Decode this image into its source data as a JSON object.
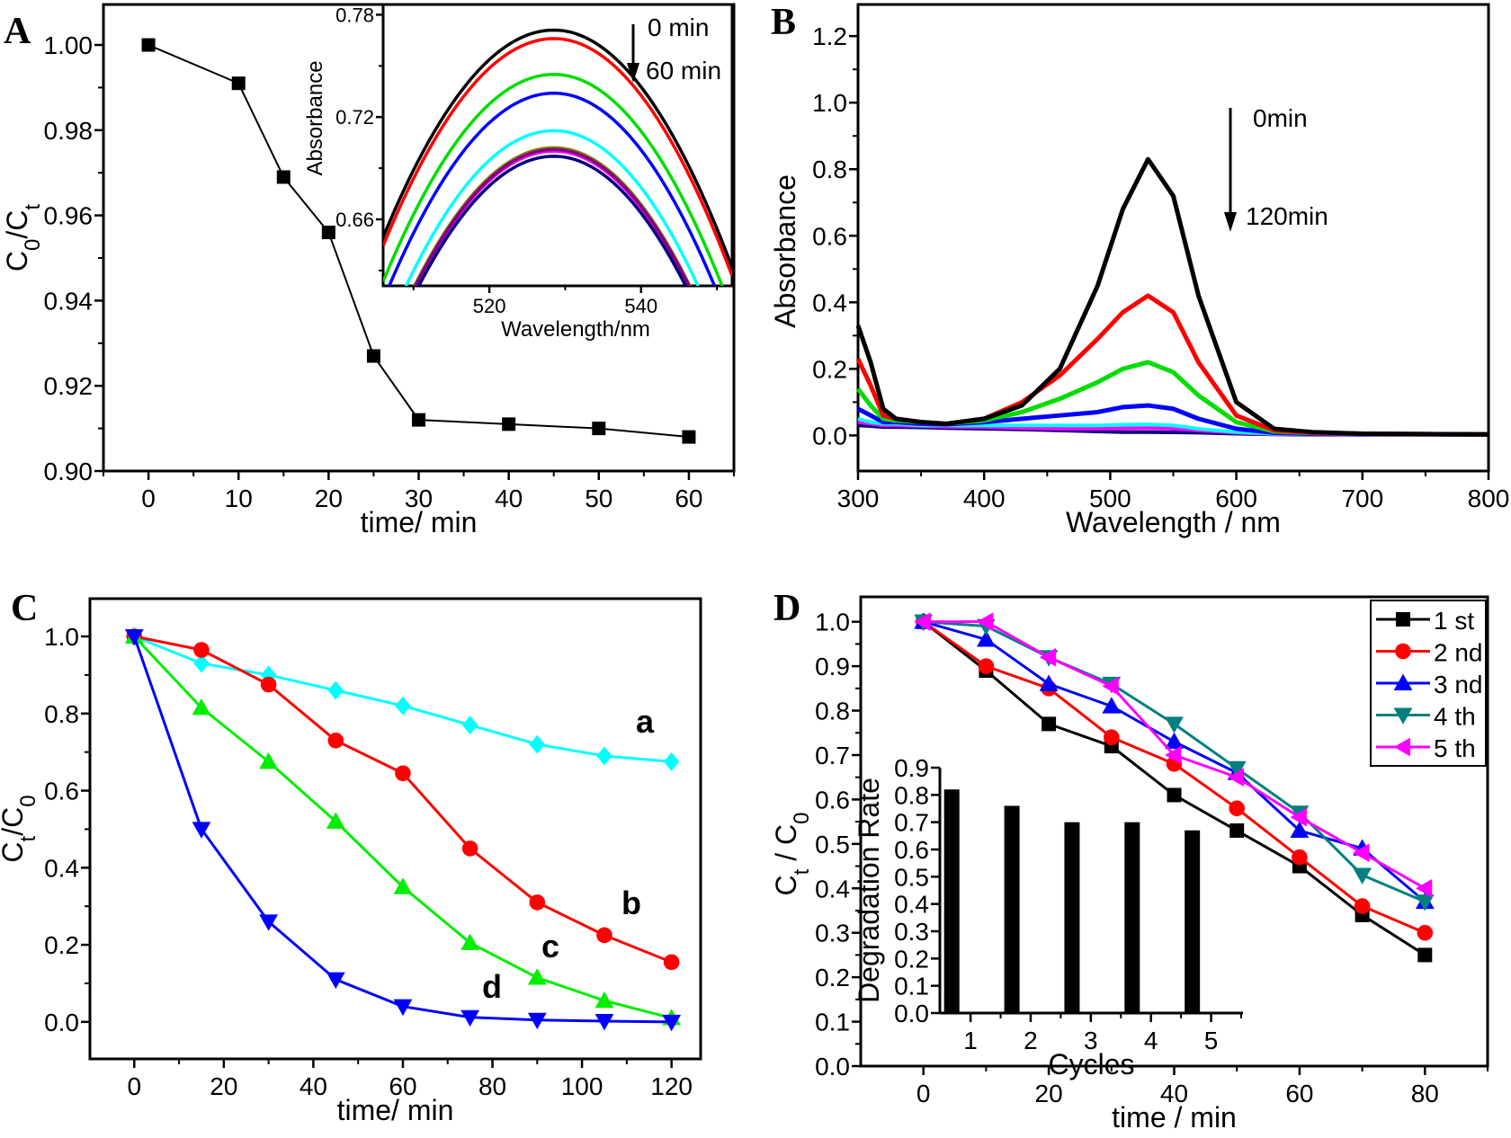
{
  "figure": {
    "panel_labels": [
      "A",
      "B",
      "C",
      "D"
    ]
  },
  "chart_data": [
    {
      "panel": "A",
      "type": "line",
      "xlabel": [
        {
          "t": "time/ min"
        }
      ],
      "ylabel": [
        {
          "t": "C"
        },
        {
          "t": "0",
          "sub": true
        },
        {
          "t": "/C"
        },
        {
          "t": "t",
          "sub": true
        }
      ],
      "xlim": [
        -5,
        65
      ],
      "ylim": [
        0.9,
        1.0095
      ],
      "xticks": [
        0,
        10,
        20,
        30,
        40,
        50,
        60
      ],
      "xticklabels": [
        "0",
        "10",
        "20",
        "30",
        "40",
        "50",
        "60"
      ],
      "xminor": [
        -5,
        5,
        15,
        25,
        35,
        45,
        55,
        65
      ],
      "yticks": [
        0.9,
        0.92,
        0.94,
        0.96,
        0.98,
        1.0
      ],
      "yticklabels": [
        "0.90",
        "0.92",
        "0.94",
        "0.96",
        "0.98",
        "1.00"
      ],
      "yminor": [
        0.91,
        0.93,
        0.95,
        0.97,
        0.99
      ],
      "series": [
        {
          "name": "C0/Ct",
          "color": "#000000",
          "marker": "square",
          "x": [
            0,
            10,
            15,
            20,
            25,
            30,
            40,
            50,
            60
          ],
          "y": [
            1.0,
            0.991,
            0.969,
            0.956,
            0.927,
            0.912,
            0.911,
            0.91,
            0.908
          ]
        }
      ],
      "inset": {
        "type": "line",
        "xlabel": [
          {
            "t": "Wavelength/nm"
          }
        ],
        "ylabel": [
          {
            "t": "Absorbance"
          }
        ],
        "xlim": [
          506,
          552
        ],
        "ylim": [
          0.621,
          0.786
        ],
        "xticks": [
          520,
          540
        ],
        "xticklabels": [
          "520",
          "540"
        ],
        "xminor": [
          510,
          530,
          550
        ],
        "yticks": [
          0.66,
          0.72,
          0.78
        ],
        "yticklabels": [
          "0.66",
          "0.72",
          "0.78"
        ],
        "yminor": [
          0.63,
          0.69,
          0.75
        ],
        "peak_wavelength": 528.5,
        "curvature": 0.00024,
        "annotations": {
          "start": "0 min",
          "end": "60 min"
        },
        "series": [
          {
            "color": "#000000",
            "peak": 0.771
          },
          {
            "color": "#ff0000",
            "peak": 0.766
          },
          {
            "color": "#00dd00",
            "peak": 0.745
          },
          {
            "color": "#0000ff",
            "peak": 0.734
          },
          {
            "color": "#00ffff",
            "peak": 0.712
          },
          {
            "color": "#808000",
            "peak": 0.702
          },
          {
            "color": "#e0e000",
            "peak": 0.701
          },
          {
            "color": "#ff00ff",
            "peak": 0.7
          },
          {
            "color": "#800080",
            "peak": 0.701
          },
          {
            "color": "#000080",
            "peak": 0.697
          }
        ]
      }
    },
    {
      "panel": "B",
      "type": "line",
      "xlabel": [
        {
          "t": "Wavelength / nm"
        }
      ],
      "ylabel": [
        {
          "t": "Absorbance"
        }
      ],
      "xlim": [
        300,
        800
      ],
      "ylim": [
        -0.107,
        1.295
      ],
      "xticks": [
        300,
        400,
        500,
        600,
        700,
        800
      ],
      "xticklabels": [
        "300",
        "400",
        "500",
        "600",
        "700",
        "800"
      ],
      "xminor": [
        350,
        450,
        550,
        650,
        750
      ],
      "yticks": [
        0,
        0.2,
        0.4,
        0.6,
        0.8,
        1.0,
        1.2
      ],
      "yticklabels": [
        "0.0",
        "0.2",
        "0.4",
        "0.6",
        "0.8",
        "1.0",
        "1.2"
      ],
      "yminor": [
        0.1,
        0.3,
        0.5,
        0.7,
        0.9,
        1.1
      ],
      "annotations": {
        "start": "0min",
        "end": "120min"
      },
      "x": [
        300,
        310,
        320,
        330,
        350,
        370,
        400,
        430,
        460,
        490,
        510,
        530,
        550,
        570,
        600,
        630,
        660,
        700,
        800
      ],
      "series": [
        {
          "color": "#000000",
          "width": 5,
          "y": [
            0.33,
            0.22,
            0.08,
            0.05,
            0.04,
            0.035,
            0.05,
            0.09,
            0.2,
            0.45,
            0.68,
            0.83,
            0.72,
            0.42,
            0.1,
            0.02,
            0.01,
            0.005,
            0.003
          ]
        },
        {
          "color": "#ff0000",
          "width": 5,
          "y": [
            0.23,
            0.15,
            0.06,
            0.05,
            0.04,
            0.035,
            0.05,
            0.1,
            0.18,
            0.29,
            0.37,
            0.42,
            0.37,
            0.22,
            0.06,
            0.015,
            0.008,
            0.005,
            0.003
          ]
        },
        {
          "color": "#00dd00",
          "width": 5,
          "y": [
            0.14,
            0.09,
            0.05,
            0.045,
            0.04,
            0.035,
            0.045,
            0.07,
            0.11,
            0.16,
            0.2,
            0.22,
            0.19,
            0.12,
            0.04,
            0.012,
            0.007,
            0.005,
            0.003
          ]
        },
        {
          "color": "#0000ff",
          "width": 5,
          "y": [
            0.08,
            0.06,
            0.04,
            0.04,
            0.035,
            0.033,
            0.04,
            0.05,
            0.06,
            0.07,
            0.085,
            0.09,
            0.08,
            0.05,
            0.02,
            0.008,
            0.005,
            0.004,
            0.003
          ]
        },
        {
          "color": "#00ffff",
          "width": 4,
          "y": [
            0.05,
            0.04,
            0.035,
            0.035,
            0.03,
            0.03,
            0.03,
            0.03,
            0.03,
            0.03,
            0.032,
            0.033,
            0.03,
            0.02,
            0.01,
            0.005,
            0.004,
            0.003,
            0.002
          ]
        },
        {
          "color": "#ff00ff",
          "width": 4,
          "y": [
            0.04,
            0.035,
            0.03,
            0.03,
            0.028,
            0.026,
            0.025,
            0.022,
            0.02,
            0.02,
            0.021,
            0.022,
            0.02,
            0.015,
            0.008,
            0.004,
            0.003,
            0.002,
            0.002
          ]
        },
        {
          "color": "#000080",
          "width": 4,
          "y": [
            0.03,
            0.028,
            0.025,
            0.025,
            0.024,
            0.022,
            0.02,
            0.018,
            0.015,
            0.012,
            0.01,
            0.01,
            0.009,
            0.008,
            0.005,
            0.003,
            0.002,
            0.002,
            0.002
          ]
        }
      ]
    },
    {
      "panel": "C",
      "type": "line",
      "xlabel": [
        {
          "t": "time/ min"
        }
      ],
      "ylabel": [
        {
          "t": "C"
        },
        {
          "t": "t",
          "sub": true
        },
        {
          "t": "/C"
        },
        {
          "t": "0",
          "sub": true
        }
      ],
      "xlim": [
        -9.9,
        126.5
      ],
      "ylim": [
        -0.096,
        1.098
      ],
      "xticks": [
        0,
        20,
        40,
        60,
        80,
        100,
        120
      ],
      "xticklabels": [
        "0",
        "20",
        "40",
        "60",
        "80",
        "100",
        "120"
      ],
      "xminor": [
        10,
        30,
        50,
        70,
        90,
        110
      ],
      "yticks": [
        0,
        0.2,
        0.4,
        0.6,
        0.8,
        1.0
      ],
      "yticklabels": [
        "0.0",
        "0.2",
        "0.4",
        "0.6",
        "0.8",
        "1.0"
      ],
      "yminor": [
        0.1,
        0.3,
        0.5,
        0.7,
        0.9
      ],
      "x": [
        0,
        15,
        30,
        45,
        60,
        75,
        90,
        105,
        120
      ],
      "series": [
        {
          "name": "a",
          "color": "#00ffff",
          "marker": "diamond",
          "y": [
            1.0,
            0.93,
            0.9,
            0.86,
            0.82,
            0.77,
            0.72,
            0.69,
            0.675
          ]
        },
        {
          "name": "b",
          "color": "#ff0000",
          "marker": "circle",
          "y": [
            1.0,
            0.965,
            0.875,
            0.73,
            0.645,
            0.45,
            0.31,
            0.225,
            0.155
          ]
        },
        {
          "name": "c",
          "color": "#00ee00",
          "marker": "tri-up",
          "y": [
            1.0,
            0.815,
            0.675,
            0.52,
            0.35,
            0.205,
            0.115,
            0.055,
            0.01
          ]
        },
        {
          "name": "d",
          "color": "#0000ff",
          "marker": "tri-down",
          "y": [
            1.0,
            0.5,
            0.26,
            0.11,
            0.04,
            0.012,
            0.005,
            0.002,
            0.0
          ]
        }
      ]
    },
    {
      "panel": "D",
      "type": "line",
      "xlabel": [
        {
          "t": "time / min"
        }
      ],
      "ylabel": [
        {
          "t": "C"
        },
        {
          "t": "t",
          "sub": true
        },
        {
          "t": " / C"
        },
        {
          "t": "0",
          "sub": true
        }
      ],
      "xlim": [
        -10,
        90
      ],
      "ylim": [
        0,
        1.056
      ],
      "xticks": [
        0,
        20,
        40,
        60,
        80
      ],
      "xticklabels": [
        "0",
        "20",
        "40",
        "60",
        "80"
      ],
      "xminor": [
        10,
        30,
        50,
        70,
        90
      ],
      "yticks": [
        0,
        0.1,
        0.2,
        0.3,
        0.4,
        0.5,
        0.6,
        0.7,
        0.8,
        0.9,
        1.0
      ],
      "yticklabels": [
        "0.0",
        "0.1",
        "0.2",
        "0.3",
        "0.4",
        "0.5",
        "0.6",
        "0.7",
        "0.8",
        "0.9",
        "1.0"
      ],
      "yminor": [
        0.05,
        0.15,
        0.25,
        0.35,
        0.45,
        0.55,
        0.65,
        0.75,
        0.85,
        0.95
      ],
      "legend": "top-right",
      "x": [
        0,
        10,
        20,
        30,
        40,
        50,
        60,
        70,
        80
      ],
      "series": [
        {
          "name": "1 st",
          "color": "#000000",
          "marker": "square",
          "y": [
            1.0,
            0.89,
            0.77,
            0.72,
            0.61,
            0.53,
            0.45,
            0.34,
            0.25
          ]
        },
        {
          "name": "2 nd",
          "color": "#ff0000",
          "marker": "circle",
          "y": [
            1.0,
            0.9,
            0.85,
            0.74,
            0.68,
            0.58,
            0.47,
            0.36,
            0.3
          ]
        },
        {
          "name": "3 nd",
          "color": "#0000ff",
          "marker": "tri-up",
          "y": [
            1.0,
            0.96,
            0.86,
            0.81,
            0.73,
            0.66,
            0.53,
            0.49,
            0.37
          ]
        },
        {
          "name": "4 th",
          "color": "#008080",
          "marker": "tri-down",
          "y": [
            1.0,
            0.99,
            0.92,
            0.86,
            0.77,
            0.67,
            0.57,
            0.43,
            0.37
          ]
        },
        {
          "name": "5 th",
          "color": "#ff00ff",
          "marker": "tri-left",
          "y": [
            1.0,
            1.0,
            0.92,
            0.855,
            0.7,
            0.65,
            0.56,
            0.48,
            0.4
          ]
        }
      ],
      "inset": {
        "type": "bar",
        "xlabel": [
          {
            "t": "Cycles"
          }
        ],
        "ylabel": [
          {
            "t": "Degradation Rate"
          }
        ],
        "xlim": [
          0.49,
          5.53
        ],
        "ylim": [
          0,
          0.9
        ],
        "categories": [
          1,
          2,
          3,
          4,
          5
        ],
        "xticklabels": [
          "1",
          "2",
          "3",
          "4",
          "5"
        ],
        "xminor": [
          1.5,
          2.5,
          3.5,
          4.5,
          5.5
        ],
        "yticks": [
          0,
          0.1,
          0.2,
          0.3,
          0.4,
          0.5,
          0.6,
          0.7,
          0.8,
          0.9
        ],
        "yticklabels": [
          "0.0",
          "0.1",
          "0.2",
          "0.3",
          "0.4",
          "0.5",
          "0.6",
          "0.7",
          "0.8",
          "0.9"
        ],
        "values": [
          0.82,
          0.76,
          0.7,
          0.7,
          0.67
        ],
        "color": "#000000"
      }
    }
  ]
}
